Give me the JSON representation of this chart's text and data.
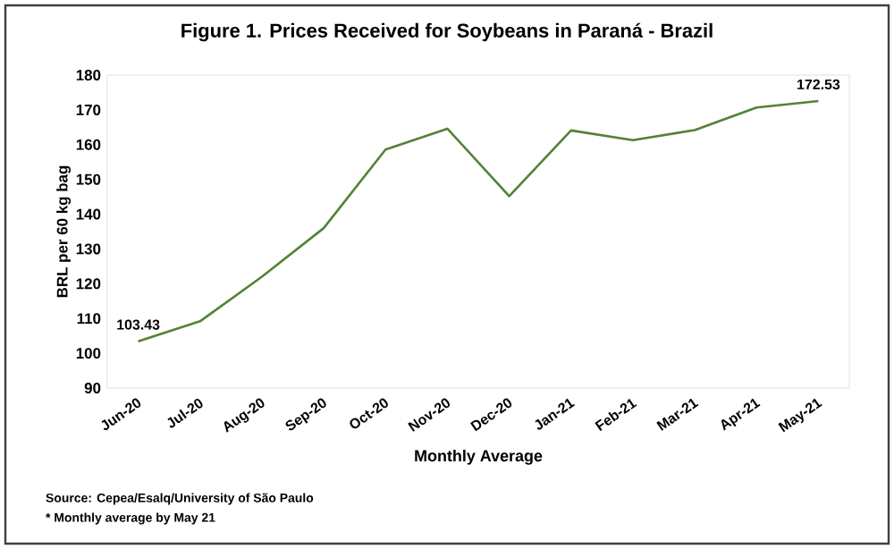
{
  "chart_data": {
    "type": "line",
    "title": "Figure 1. Prices Received for Soybeans in Paraná - Brazil",
    "xlabel": "Monthly Average",
    "ylabel": "BRL per 60 kg bag",
    "categories": [
      "Jun-20",
      "Jul-20",
      "Aug-20",
      "Sep-20",
      "Oct-20",
      "Nov-20",
      "Dec-20",
      "Jan-21",
      "Feb-21",
      "Mar-21",
      "Apr-21",
      "May-21"
    ],
    "series": [
      {
        "color": "#548235",
        "values": [
          103.43,
          109.2,
          122,
          136,
          158.6,
          164.6,
          145.2,
          164.1,
          161.3,
          164.2,
          170.7,
          172.53
        ],
        "value_labels": [
          "103.43",
          null,
          null,
          null,
          null,
          null,
          null,
          null,
          null,
          null,
          null,
          "172.53"
        ]
      }
    ],
    "ylim": [
      90,
      180
    ],
    "yticks": [
      90,
      100,
      110,
      120,
      130,
      140,
      150,
      160,
      170,
      180
    ],
    "grid": false,
    "marker": "none",
    "line_style": "solid",
    "annotations": [
      "Source: Cepea/Esalq/University of São Paulo",
      "* Monthly average by May 21"
    ]
  }
}
